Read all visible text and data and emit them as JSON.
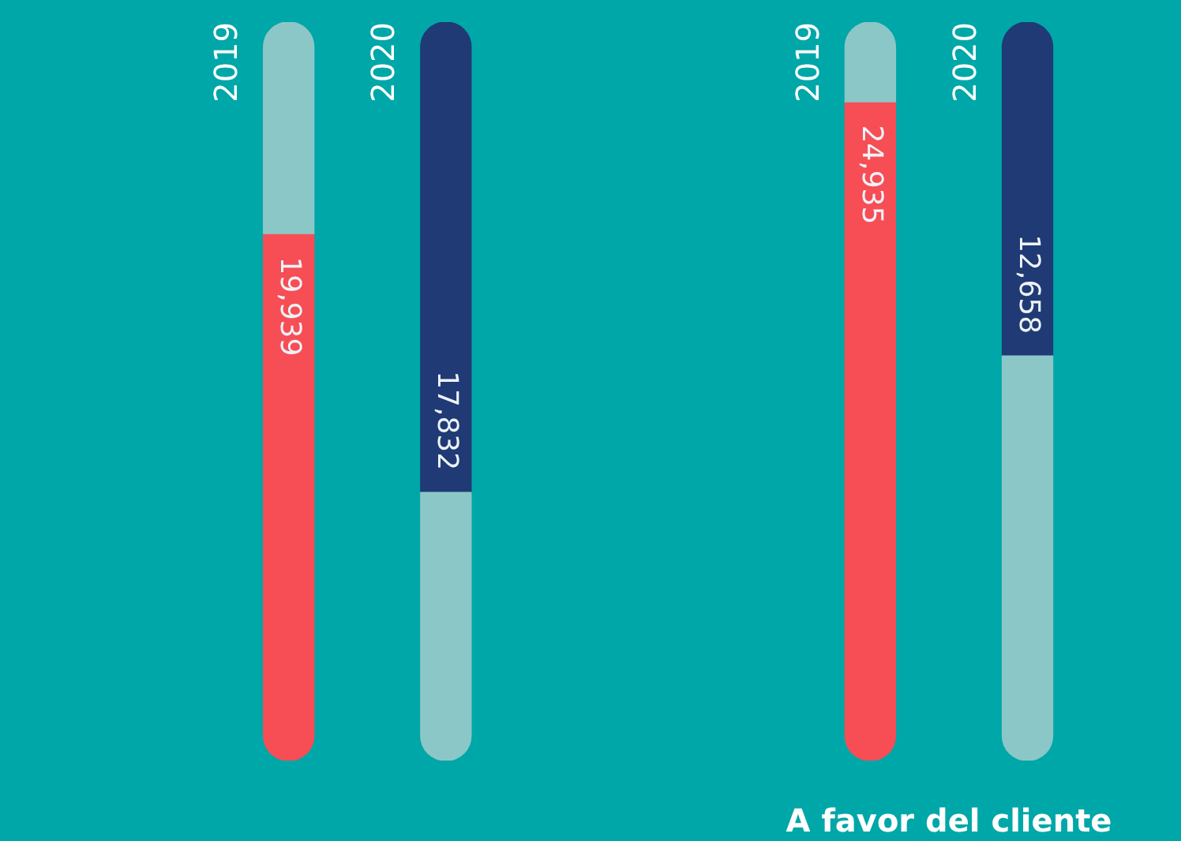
{
  "chart_data": {
    "type": "bar",
    "categories": [
      "2019",
      "2020",
      "2019",
      "2020"
    ],
    "stacked": true,
    "series": [
      {
        "colors": [
          "#f74d55",
          "#8cc7c8",
          "#f74d55",
          "#8cc7c8"
        ],
        "values": [
          19939,
          10168,
          24935,
          15342
        ],
        "value_labels": [
          "19,939",
          null,
          "24,935",
          null
        ]
      },
      {
        "colors": [
          "#8cc7c8",
          "#1f3a74",
          "#8cc7c8",
          "#1f3a74"
        ],
        "values": [
          8061,
          17832,
          3065,
          12658
        ],
        "value_labels": [
          null,
          "17,832",
          null,
          "12,658"
        ]
      }
    ],
    "tick_labels": "x",
    "annotations": [
      "A favor del cliente"
    ]
  }
}
